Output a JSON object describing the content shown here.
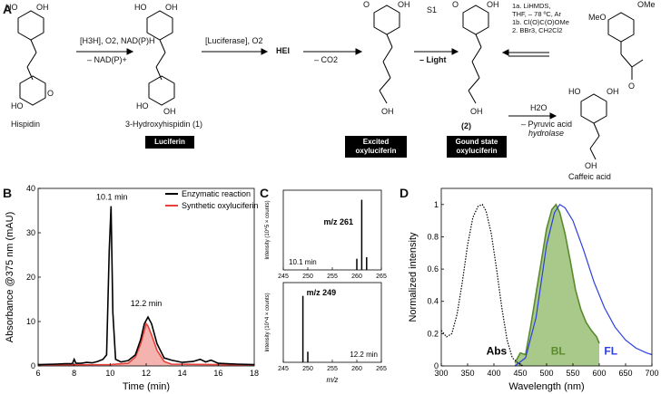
{
  "panels": {
    "a": "A",
    "b": "B",
    "c": "C",
    "d": "D"
  },
  "scheme": {
    "hispidin": "Hispidin",
    "hydroxyhispidin": "3-Hydroxyhispidin (1)",
    "luciferin_box": "Luciferin",
    "step1_top": "[H3H], O2, NAD(P)H",
    "step1_bottom": "– NAD(P)+",
    "step2_top": "[Luciferase], O2",
    "hei": "HEI",
    "co2": "– CO2",
    "light": "– Light",
    "s1": "S1",
    "excited_box": [
      "Excited",
      "oxyluciferin"
    ],
    "ground_box": [
      "Gound state",
      "oxyluciferin"
    ],
    "ground_num": "(2)",
    "synthesis": [
      "1a. LiHMDS,",
      "THF, – 78 ºC, Ar",
      "1b. Cl(O)C(O)OMe",
      "2.   BBr3, CH2Cl2"
    ],
    "ome": "OMe",
    "meo": "MeO",
    "h2o": "H2O",
    "pyruvic": "– Pyruvic acid",
    "hydrolase": "hydrolase",
    "caffeic": "Caffeic acid",
    "oh": "OH",
    "ho": "HO",
    "o": "O"
  },
  "chart_data": [
    {
      "type": "line",
      "panel": "B",
      "xlabel": "Time (min)",
      "ylabel": "Absorbance @375 nm (mAU)",
      "xlim": [
        6,
        18
      ],
      "ylim": [
        0,
        40
      ],
      "xticks": [
        6,
        8,
        10,
        12,
        14,
        16,
        18
      ],
      "yticks": [
        0,
        10,
        20,
        30,
        40
      ],
      "legend": "top-right",
      "series": [
        {
          "name": "Enzymatic reaction",
          "color": "#000000",
          "x": [
            6,
            7,
            7.5,
            7.9,
            8.0,
            8.1,
            8.4,
            8.7,
            9.0,
            9.3,
            9.6,
            9.8,
            9.95,
            10.05,
            10.15,
            10.3,
            10.6,
            11.0,
            11.4,
            11.7,
            11.9,
            12.1,
            12.3,
            12.6,
            13.0,
            13.4,
            14.0,
            14.6,
            15.0,
            15.3,
            15.6,
            16.0,
            17.0,
            18.0
          ],
          "y": [
            0.3,
            0.4,
            0.5,
            0.5,
            1.5,
            0.6,
            0.6,
            0.8,
            0.7,
            1.0,
            1.5,
            2.5,
            26,
            36,
            12,
            1.5,
            0.9,
            1.2,
            2.5,
            6,
            9.5,
            11,
            9.5,
            5,
            1.8,
            1.3,
            0.8,
            1.0,
            1.5,
            0.9,
            1.3,
            0.6,
            0.4,
            0.3
          ]
        },
        {
          "name": "Synthetic oxyluciferin",
          "color": "#e8403a",
          "x": [
            6,
            10,
            11.0,
            11.4,
            11.7,
            11.9,
            12.0,
            12.1,
            12.3,
            12.6,
            13.0,
            13.4,
            18
          ],
          "y": [
            0.2,
            0.3,
            0.6,
            2.0,
            5.0,
            8.0,
            9.5,
            9.0,
            7.0,
            3.5,
            1.0,
            0.4,
            0.2
          ]
        }
      ],
      "annotations": [
        "10.1 min",
        "12.2 min"
      ]
    },
    {
      "type": "bar",
      "panel": "C",
      "xlabel": "m/z",
      "xlim": [
        245,
        265
      ],
      "xticks": [
        245,
        250,
        255,
        260,
        265
      ],
      "subplots": [
        {
          "label": "m/z 261",
          "time": "10.1 min",
          "ylabel": "Intensity (10^5 × counts)",
          "ylim": [
            0,
            5
          ],
          "yticks": [
            0,
            1,
            2,
            3,
            4,
            5
          ],
          "x": [
            260,
            261,
            262
          ],
          "y": [
            0.7,
            4.4,
            0.8
          ]
        },
        {
          "label": "m/z 249",
          "time": "12.2 min",
          "ylabel": "Intensity (10^4 × counts)",
          "ylim": [
            0,
            3
          ],
          "yticks": [
            0,
            1,
            2,
            3
          ],
          "x": [
            249,
            250
          ],
          "y": [
            2.5,
            0.4
          ]
        }
      ]
    },
    {
      "type": "line",
      "panel": "D",
      "xlabel": "Wavelength (nm)",
      "ylabel": "Normalized intensity",
      "xlim": [
        300,
        700
      ],
      "ylim": [
        0,
        1.1
      ],
      "xticks": [
        300,
        350,
        400,
        450,
        500,
        550,
        600,
        650,
        700
      ],
      "yticks": [
        0,
        0.2,
        0.4,
        0.6,
        0.8,
        1.0
      ],
      "series": [
        {
          "name": "Abs",
          "color": "#000000",
          "style": "dotted",
          "x": [
            300,
            310,
            320,
            330,
            340,
            350,
            360,
            370,
            378,
            385,
            395,
            405,
            415,
            425,
            435,
            445,
            455
          ],
          "y": [
            0.22,
            0.18,
            0.2,
            0.32,
            0.52,
            0.75,
            0.92,
            0.99,
            1.0,
            0.96,
            0.82,
            0.6,
            0.36,
            0.16,
            0.05,
            0.02,
            0.0
          ]
        },
        {
          "name": "BL",
          "color": "#5a8a2e",
          "fill": "#a8c98a",
          "style": "filled",
          "x": [
            440,
            450,
            460,
            470,
            480,
            490,
            500,
            510,
            518,
            525,
            535,
            545,
            555,
            565,
            575,
            585,
            595,
            600
          ],
          "y": [
            0.02,
            0.08,
            0.07,
            0.25,
            0.45,
            0.65,
            0.85,
            0.97,
            1.0,
            0.95,
            0.82,
            0.65,
            0.47,
            0.35,
            0.27,
            0.22,
            0.18,
            0.14
          ]
        },
        {
          "name": "FL",
          "color": "#2b3ee0",
          "style": "solid",
          "x": [
            440,
            460,
            480,
            500,
            515,
            525,
            535,
            550,
            570,
            590,
            610,
            630,
            650,
            670,
            690,
            700
          ],
          "y": [
            0.0,
            0.05,
            0.3,
            0.75,
            0.95,
            1.0,
            0.98,
            0.9,
            0.72,
            0.52,
            0.36,
            0.24,
            0.16,
            0.11,
            0.08,
            0.07
          ]
        }
      ]
    }
  ]
}
